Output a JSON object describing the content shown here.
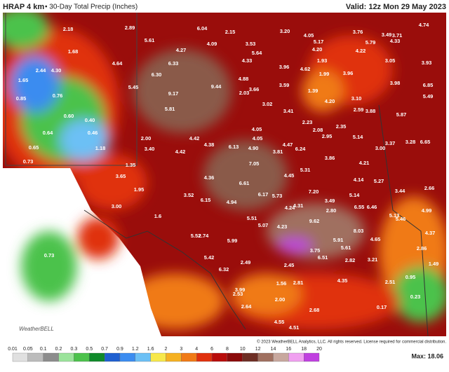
{
  "header": {
    "model": "HRAP 4 km",
    "title": "• 30-Day Total Precip (Inches)",
    "valid": "Valid: 12z Mon 29 May 2023"
  },
  "legend": {
    "ticks": [
      "0.01",
      "0.05",
      "0.1",
      "0.2",
      "0.3",
      "0.5",
      "0.7",
      "0.9",
      "1.2",
      "1.6",
      "2",
      "3",
      "4",
      "6",
      "8",
      "10",
      "12",
      "14",
      "16",
      "18",
      "20"
    ],
    "colors": [
      "#e0e0e0",
      "#bcbcbc",
      "#8c8c8c",
      "#9be39b",
      "#4cc24c",
      "#0f8a2a",
      "#1e5fd0",
      "#3b8cf0",
      "#6cc0f5",
      "#f7e84a",
      "#f5b122",
      "#f07a16",
      "#e0300d",
      "#b80c0a",
      "#8a0a0a",
      "#6e2e24",
      "#a07060",
      "#c8a89e",
      "#f0a0f0",
      "#c040e0"
    ],
    "max": "Max: 18.06"
  },
  "copyright": "© 2023 WeatherBELL Analytics, LLC. All rights reserved. License required for commercial distribution.",
  "logo": "WeatherBELL",
  "labels": [
    "2.89",
    "6.04",
    "2.15",
    "3.20",
    "4.05",
    "3.76",
    "3.49",
    "3.71",
    "4.74",
    "2.18",
    "5.61",
    "4.09",
    "3.53",
    "5.17",
    "5.79",
    "4.33",
    "4.27",
    "5.64",
    "4.20",
    "4.22",
    "1.68",
    "4.64",
    "6.33",
    "4.33",
    "3.96",
    "4.62",
    "1.93",
    "3.05",
    "3.93",
    "2.44",
    "4.30",
    "6.30",
    "1.99",
    "3.96",
    "4.88",
    "5.45",
    "9.17",
    "9.44",
    "3.66",
    "3.59",
    "2.03",
    "3.98",
    "6.85",
    "1.65",
    "0.85",
    "0.76",
    "1.39",
    "3.10",
    "5.49",
    "4.20",
    "3.02",
    "5.81",
    "3.41",
    "2.59",
    "3.88",
    "5.87",
    "0.60",
    "2.23",
    "2.08",
    "2.35",
    "0.40",
    "0.46",
    "0.64",
    "4.05",
    "4.42",
    "4.38",
    "4.05",
    "4.47",
    "2.95",
    "5.14",
    "3.37",
    "3.28",
    "6.65",
    "2.00",
    "6.13",
    "4.90",
    "3.81",
    "6.24",
    "3.00",
    "0.65",
    "1.18",
    "3.40",
    "4.42",
    "0.73",
    "3.86",
    "4.21",
    "1.35",
    "7.05",
    "5.31",
    "3.65",
    "4.36",
    "4.45",
    "4.14",
    "5.27",
    "2.66",
    "6.61",
    "1.95",
    "7.20",
    "3.44",
    "3.52",
    "6.17",
    "5.73",
    "5.14",
    "6.15",
    "4.94",
    "3.49",
    "6.55",
    "6.46",
    "3.00",
    "4.24",
    "4.31",
    "2.80",
    "4.99",
    "1.6",
    "5.13",
    "5.51",
    "5.07",
    "4.23",
    "9.62",
    "5.46",
    "8.03",
    "4.37",
    "5.52",
    "2.74",
    "4.65",
    "5.99",
    "5.91",
    "5.61",
    "2.86",
    "0.73",
    "3.75",
    "6.51",
    "5.42",
    "2.82",
    "3.21",
    "1.49",
    "2.49",
    "2.45",
    "6.32",
    "0.95",
    "4.35",
    "2.51",
    "1.56",
    "2.81",
    "3.99",
    "2.53",
    "2.00",
    "0.23",
    "2.64",
    "2.68",
    "0.17",
    "4.55",
    "4.51"
  ]
}
